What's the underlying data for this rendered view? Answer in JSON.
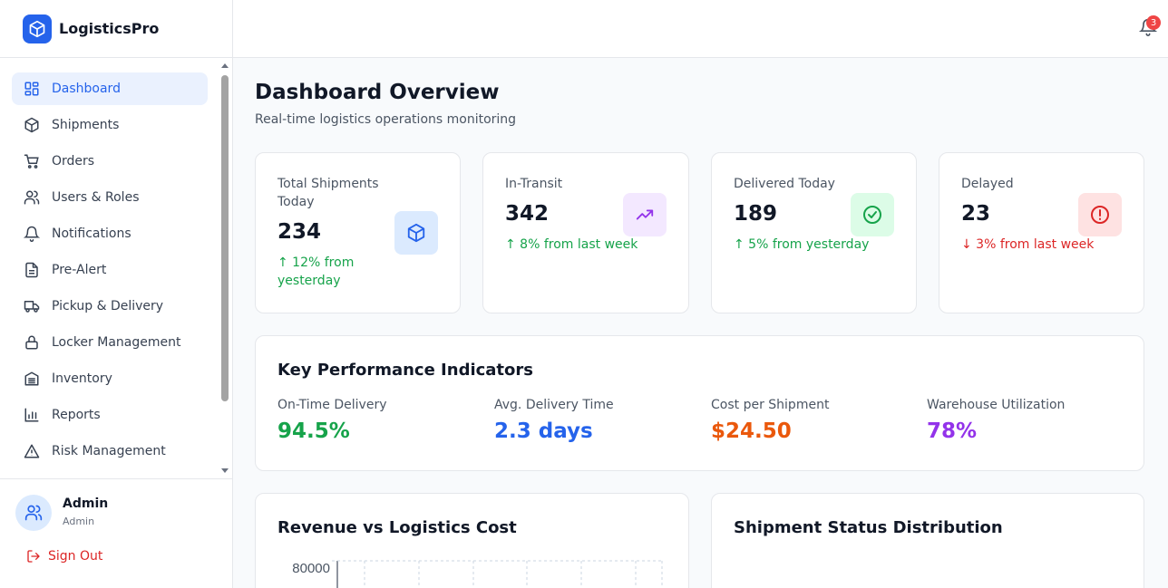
{
  "app": {
    "name": "LogisticsPro"
  },
  "sidebar": {
    "items": [
      {
        "label": "Dashboard",
        "icon": "dashboard-icon",
        "active": true
      },
      {
        "label": "Shipments",
        "icon": "package-icon"
      },
      {
        "label": "Orders",
        "icon": "cart-icon"
      },
      {
        "label": "Users & Roles",
        "icon": "users-icon"
      },
      {
        "label": "Notifications",
        "icon": "bell-icon"
      },
      {
        "label": "Pre-Alert",
        "icon": "document-icon"
      },
      {
        "label": "Pickup & Delivery",
        "icon": "truck-icon"
      },
      {
        "label": "Locker Management",
        "icon": "lock-icon"
      },
      {
        "label": "Inventory",
        "icon": "warehouse-icon"
      },
      {
        "label": "Reports",
        "icon": "bar-chart-icon"
      },
      {
        "label": "Risk Management",
        "icon": "warning-icon"
      }
    ]
  },
  "user": {
    "name": "Admin",
    "role": "Admin",
    "signout_label": "Sign Out"
  },
  "header": {
    "notification_count": "3"
  },
  "page": {
    "title": "Dashboard Overview",
    "subtitle": "Real-time logistics operations monitoring"
  },
  "stats": [
    {
      "label": "Total Shipments Today",
      "value": "234",
      "change": "↑ 12% from yesterday",
      "trend": "up",
      "icon": "package-icon"
    },
    {
      "label": "In-Transit",
      "value": "342",
      "change": "↑ 8% from last week",
      "trend": "up",
      "icon": "trending-up-icon"
    },
    {
      "label": "Delivered Today",
      "value": "189",
      "change": "↑ 5% from yesterday",
      "trend": "up",
      "icon": "check-circle-icon"
    },
    {
      "label": "Delayed",
      "value": "23",
      "change": "↓ 3% from last week",
      "trend": "down",
      "icon": "alert-circle-icon"
    }
  ],
  "kpi": {
    "title": "Key Performance Indicators",
    "items": [
      {
        "label": "On-Time Delivery",
        "value": "94.5%",
        "color": "#16a34a"
      },
      {
        "label": "Avg. Delivery Time",
        "value": "2.3 days",
        "color": "#2563eb"
      },
      {
        "label": "Cost per Shipment",
        "value": "$24.50",
        "color": "#ea580c"
      },
      {
        "label": "Warehouse Utilization",
        "value": "78%",
        "color": "#9333ea"
      }
    ]
  },
  "charts": {
    "revenue": {
      "title": "Revenue vs Logistics Cost",
      "y_tick_top": "80000"
    },
    "status": {
      "title": "Shipment Status Distribution"
    }
  },
  "colors": {
    "accent": "#2563eb",
    "up": "#16a34a",
    "down": "#dc2626"
  }
}
